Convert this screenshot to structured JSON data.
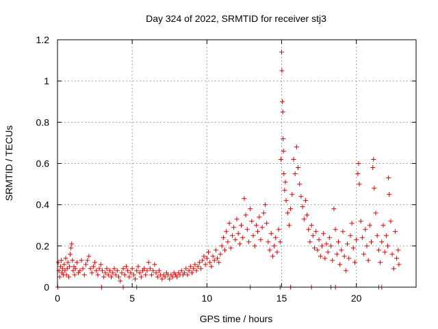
{
  "chart_data": {
    "type": "scatter",
    "title": "Day 324 of 2022, SRMTID for receiver stj3",
    "xlabel": "GPS time / hours",
    "ylabel": "SRMTID / TECUs",
    "xlim": [
      0,
      24
    ],
    "ylim": [
      0,
      1.2
    ],
    "x_ticks": [
      0,
      5,
      10,
      15,
      20
    ],
    "x_tick_labels": [
      "0",
      "5",
      "10",
      "15",
      "20"
    ],
    "y_ticks": [
      0,
      0.2,
      0.4,
      0.6,
      0.8,
      1.0,
      1.2
    ],
    "y_tick_labels": [
      "0",
      "0.2",
      "0.4",
      "0.6",
      "0.8",
      "1",
      "1.2"
    ],
    "grid": true,
    "marker": "plus",
    "colors": {
      "series": "#dd0000",
      "grid": "#a0a0a0",
      "axis": "#000000"
    },
    "series": [
      {
        "name": "SRMTID",
        "points": [
          [
            0.05,
            0.12
          ],
          [
            0.1,
            0.08
          ],
          [
            0.15,
            0.05
          ],
          [
            0.2,
            0.1
          ],
          [
            0.25,
            0.13
          ],
          [
            0.3,
            0.07
          ],
          [
            0.35,
            0.09
          ],
          [
            0.4,
            0.06
          ],
          [
            0.45,
            0.11
          ],
          [
            0.5,
            0.08
          ],
          [
            0.55,
            0.14
          ],
          [
            0.6,
            0.06
          ],
          [
            0.65,
            0.09
          ],
          [
            0.7,
            0.12
          ],
          [
            0.75,
            0.05
          ],
          [
            0.8,
            0.1
          ],
          [
            0.85,
            0.16
          ],
          [
            0.9,
            0.19
          ],
          [
            0.95,
            0.21
          ],
          [
            1.0,
            0.13
          ],
          [
            1.05,
            0.08
          ],
          [
            1.1,
            0.1
          ],
          [
            1.15,
            0.06
          ],
          [
            1.2,
            0.09
          ],
          [
            1.3,
            0.12
          ],
          [
            1.4,
            0.07
          ],
          [
            1.5,
            0.08
          ],
          [
            1.6,
            0.13
          ],
          [
            1.7,
            0.09
          ],
          [
            1.8,
            0.06
          ],
          [
            1.9,
            0.11
          ],
          [
            2.0,
            0.13
          ],
          [
            2.1,
            0.15
          ],
          [
            2.2,
            0.09
          ],
          [
            2.3,
            0.07
          ],
          [
            2.4,
            0.1
          ],
          [
            2.5,
            0.12
          ],
          [
            2.6,
            0.08
          ],
          [
            2.7,
            0.06
          ],
          [
            2.8,
            0.09
          ],
          [
            2.9,
            0.11
          ],
          [
            3.0,
            0.08
          ],
          [
            3.1,
            0.05
          ],
          [
            3.2,
            0.07
          ],
          [
            3.3,
            0.09
          ],
          [
            3.4,
            0.06
          ],
          [
            3.5,
            0.08
          ],
          [
            3.6,
            0.05
          ],
          [
            3.7,
            0.07
          ],
          [
            3.8,
            0.09
          ],
          [
            3.9,
            0.06
          ],
          [
            4.0,
            0.08
          ],
          [
            4.1,
            0.05
          ],
          [
            4.2,
            0.03
          ],
          [
            4.3,
            0.07
          ],
          [
            4.4,
            0.09
          ],
          [
            4.5,
            0.06
          ],
          [
            4.6,
            0.1
          ],
          [
            4.7,
            0.08
          ],
          [
            4.8,
            0.05
          ],
          [
            4.9,
            0.07
          ],
          [
            5.0,
            0.09
          ],
          [
            5.1,
            0.06
          ],
          [
            5.2,
            0.04
          ],
          [
            5.3,
            0.08
          ],
          [
            5.4,
            0.1
          ],
          [
            5.5,
            0.07
          ],
          [
            5.6,
            0.05
          ],
          [
            5.7,
            0.08
          ],
          [
            5.8,
            0.09
          ],
          [
            5.9,
            0.06
          ],
          [
            6.0,
            0.08
          ],
          [
            6.1,
            0.12
          ],
          [
            6.2,
            0.09
          ],
          [
            6.3,
            0.06
          ],
          [
            6.4,
            0.08
          ],
          [
            6.5,
            0.11
          ],
          [
            6.6,
            0.07
          ],
          [
            6.7,
            0.05
          ],
          [
            6.8,
            0.08
          ],
          [
            6.9,
            0.06
          ],
          [
            7.0,
            0.04
          ],
          [
            7.1,
            0.06
          ],
          [
            7.2,
            0.05
          ],
          [
            7.3,
            0.07
          ],
          [
            7.4,
            0.06
          ],
          [
            7.5,
            0.04
          ],
          [
            7.6,
            0.06
          ],
          [
            7.7,
            0.05
          ],
          [
            7.8,
            0.07
          ],
          [
            7.9,
            0.06
          ],
          [
            8.0,
            0.05
          ],
          [
            8.1,
            0.07
          ],
          [
            8.2,
            0.06
          ],
          [
            8.3,
            0.08
          ],
          [
            8.4,
            0.06
          ],
          [
            8.5,
            0.07
          ],
          [
            8.6,
            0.09
          ],
          [
            8.7,
            0.06
          ],
          [
            8.8,
            0.08
          ],
          [
            8.9,
            0.1
          ],
          [
            9.0,
            0.07
          ],
          [
            9.1,
            0.09
          ],
          [
            9.2,
            0.11
          ],
          [
            9.3,
            0.08
          ],
          [
            9.4,
            0.1
          ],
          [
            9.5,
            0.12
          ],
          [
            9.6,
            0.09
          ],
          [
            9.7,
            0.13
          ],
          [
            9.8,
            0.15
          ],
          [
            9.9,
            0.11
          ],
          [
            10.0,
            0.14
          ],
          [
            10.1,
            0.17
          ],
          [
            10.2,
            0.12
          ],
          [
            10.3,
            0.1
          ],
          [
            10.4,
            0.15
          ],
          [
            10.5,
            0.13
          ],
          [
            10.6,
            0.18
          ],
          [
            10.7,
            0.14
          ],
          [
            10.8,
            0.12
          ],
          [
            10.9,
            0.16
          ],
          [
            11.0,
            0.2
          ],
          [
            11.1,
            0.24
          ],
          [
            11.2,
            0.18
          ],
          [
            11.3,
            0.27
          ],
          [
            11.4,
            0.22
          ],
          [
            11.5,
            0.31
          ],
          [
            11.6,
            0.19
          ],
          [
            11.7,
            0.25
          ],
          [
            11.8,
            0.29
          ],
          [
            11.9,
            0.23
          ],
          [
            12.0,
            0.33
          ],
          [
            12.1,
            0.26
          ],
          [
            12.2,
            0.21
          ],
          [
            12.3,
            0.3
          ],
          [
            12.4,
            0.24
          ],
          [
            12.5,
            0.43
          ],
          [
            12.6,
            0.35
          ],
          [
            12.7,
            0.28
          ],
          [
            12.8,
            0.22
          ],
          [
            12.9,
            0.38
          ],
          [
            13.0,
            0.32
          ],
          [
            13.1,
            0.25
          ],
          [
            13.2,
            0.2
          ],
          [
            13.3,
            0.3
          ],
          [
            13.4,
            0.27
          ],
          [
            13.5,
            0.34
          ],
          [
            13.6,
            0.23
          ],
          [
            13.7,
            0.29
          ],
          [
            13.8,
            0.36
          ],
          [
            13.9,
            0.4
          ],
          [
            14.0,
            0.31
          ],
          [
            14.1,
            0.22
          ],
          [
            14.2,
            0.18
          ],
          [
            14.3,
            0.26
          ],
          [
            14.4,
            0.15
          ],
          [
            14.5,
            0.2
          ],
          [
            14.6,
            0.24
          ],
          [
            14.7,
            0.17
          ],
          [
            14.8,
            0.28
          ],
          [
            14.9,
            0.22
          ],
          [
            14.95,
            0.62
          ],
          [
            15.0,
            1.14
          ],
          [
            15.02,
            1.05
          ],
          [
            15.05,
            0.9
          ],
          [
            15.08,
            0.85
          ],
          [
            15.1,
            0.72
          ],
          [
            15.12,
            0.66
          ],
          [
            15.15,
            0.55
          ],
          [
            15.2,
            0.47
          ],
          [
            15.25,
            0.51
          ],
          [
            15.3,
            0.42
          ],
          [
            15.4,
            0.36
          ],
          [
            15.5,
            0.3
          ],
          [
            15.6,
            0.38
          ],
          [
            15.7,
            0.45
          ],
          [
            15.8,
            0.62
          ],
          [
            15.9,
            0.55
          ],
          [
            16.0,
            0.68
          ],
          [
            16.1,
            0.58
          ],
          [
            16.2,
            0.5
          ],
          [
            16.3,
            0.44
          ],
          [
            16.4,
            0.39
          ],
          [
            16.5,
            0.33
          ],
          [
            16.6,
            0.42
          ],
          [
            16.7,
            0.35
          ],
          [
            16.8,
            0.28
          ],
          [
            16.9,
            0.22
          ],
          [
            17.0,
            0.3
          ],
          [
            17.1,
            0.25
          ],
          [
            17.2,
            0.19
          ],
          [
            17.3,
            0.27
          ],
          [
            17.4,
            0.18
          ],
          [
            17.5,
            0.23
          ],
          [
            17.6,
            0.15
          ],
          [
            17.7,
            0.2
          ],
          [
            17.8,
            0.26
          ],
          [
            17.9,
            0.14
          ],
          [
            18.0,
            0.21
          ],
          [
            18.1,
            0.17
          ],
          [
            18.2,
            0.24
          ],
          [
            18.3,
            0.2
          ],
          [
            18.4,
            0.13
          ],
          [
            18.5,
            0.38
          ],
          [
            18.6,
            0.28
          ],
          [
            18.7,
            0.16
          ],
          [
            18.8,
            0.22
          ],
          [
            18.9,
            0.11
          ],
          [
            19.0,
            0.18
          ],
          [
            19.1,
            0.27
          ],
          [
            19.2,
            0.15
          ],
          [
            19.3,
            0.08
          ],
          [
            19.4,
            0.21
          ],
          [
            19.5,
            0.14
          ],
          [
            19.6,
            0.25
          ],
          [
            19.7,
            0.31
          ],
          [
            19.8,
            0.19
          ],
          [
            19.9,
            0.12
          ],
          [
            20.0,
            0.23
          ],
          [
            20.1,
            0.55
          ],
          [
            20.15,
            0.6
          ],
          [
            20.2,
            0.5
          ],
          [
            20.3,
            0.32
          ],
          [
            20.4,
            0.24
          ],
          [
            20.5,
            0.16
          ],
          [
            20.6,
            0.28
          ],
          [
            20.7,
            0.2
          ],
          [
            20.8,
            0.13
          ],
          [
            20.9,
            0.3
          ],
          [
            21.0,
            0.22
          ],
          [
            21.1,
            0.58
          ],
          [
            21.15,
            0.62
          ],
          [
            21.2,
            0.48
          ],
          [
            21.3,
            0.36
          ],
          [
            21.4,
            0.25
          ],
          [
            21.5,
            0.18
          ],
          [
            21.6,
            0.12
          ],
          [
            21.7,
            0.22
          ],
          [
            21.8,
            0.3
          ],
          [
            21.9,
            0.17
          ],
          [
            22.0,
            0.25
          ],
          [
            22.1,
            0.2
          ],
          [
            22.15,
            0.53
          ],
          [
            22.2,
            0.45
          ],
          [
            22.3,
            0.32
          ],
          [
            22.4,
            0.16
          ],
          [
            22.5,
            0.09
          ],
          [
            22.6,
            0.27
          ],
          [
            22.7,
            0.14
          ],
          [
            22.8,
            0.18
          ],
          [
            22.85,
            0.11
          ],
          [
            0.02,
            0.0
          ],
          [
            2.95,
            0.0
          ],
          [
            4.4,
            0.0
          ],
          [
            5.3,
            0.0
          ],
          [
            12.9,
            0.0
          ],
          [
            14.9,
            0.0
          ],
          [
            15.6,
            0.0
          ],
          [
            17.0,
            0.0
          ],
          [
            18.3,
            0.0
          ],
          [
            18.6,
            0.0
          ],
          [
            21.5,
            0.0
          ],
          [
            21.7,
            0.0
          ]
        ]
      }
    ]
  }
}
